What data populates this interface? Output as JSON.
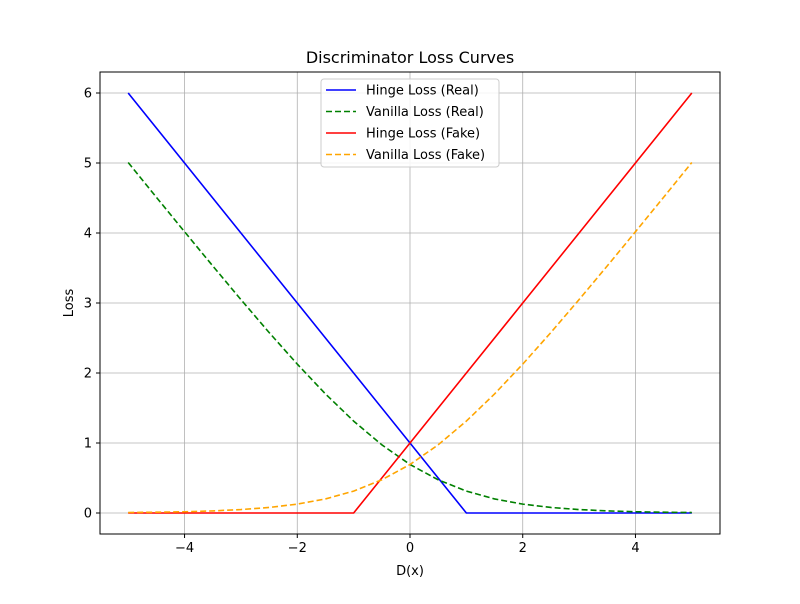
{
  "chart_data": {
    "type": "line",
    "title": "Discriminator Loss Curves",
    "xlabel": "D(x)",
    "ylabel": "Loss",
    "xlim": [
      -5.5,
      5.5
    ],
    "ylim": [
      -0.3,
      6.3
    ],
    "xticks": [
      -4,
      -2,
      0,
      2,
      4
    ],
    "xtick_labels": [
      "−4",
      "−2",
      "0",
      "2",
      "4"
    ],
    "yticks": [
      0,
      1,
      2,
      3,
      4,
      5,
      6
    ],
    "ytick_labels": [
      "0",
      "1",
      "2",
      "3",
      "4",
      "5",
      "6"
    ],
    "grid": true,
    "legend_position": "top-center",
    "series": [
      {
        "name": "Hinge Loss (Real)",
        "color": "#0000ff",
        "style": "solid",
        "x": [
          -5,
          -4,
          -3,
          -2,
          -1,
          0,
          1,
          2,
          3,
          4,
          5
        ],
        "y": [
          6,
          5,
          4,
          3,
          2,
          1,
          0,
          0,
          0,
          0,
          0
        ]
      },
      {
        "name": "Vanilla Loss (Real)",
        "color": "#008000",
        "style": "dashed",
        "x": [
          -5,
          -4.5,
          -4,
          -3.5,
          -3,
          -2.5,
          -2,
          -1.5,
          -1,
          -0.5,
          0,
          0.5,
          1,
          1.5,
          2,
          2.5,
          3,
          3.5,
          4,
          4.5,
          5
        ],
        "y": [
          5.007,
          4.511,
          4.018,
          3.53,
          3.049,
          2.579,
          2.127,
          1.701,
          1.313,
          0.974,
          0.693,
          0.474,
          0.313,
          0.201,
          0.127,
          0.079,
          0.049,
          0.03,
          0.018,
          0.011,
          0.007
        ]
      },
      {
        "name": "Hinge Loss (Fake)",
        "color": "#ff0000",
        "style": "solid",
        "x": [
          -5,
          -4,
          -3,
          -2,
          -1,
          0,
          1,
          2,
          3,
          4,
          5
        ],
        "y": [
          0,
          0,
          0,
          0,
          0,
          1,
          2,
          3,
          4,
          5,
          6
        ]
      },
      {
        "name": "Vanilla Loss (Fake)",
        "color": "#ffa500",
        "style": "dashed",
        "x": [
          -5,
          -4.5,
          -4,
          -3.5,
          -3,
          -2.5,
          -2,
          -1.5,
          -1,
          -0.5,
          0,
          0.5,
          1,
          1.5,
          2,
          2.5,
          3,
          3.5,
          4,
          4.5,
          5
        ],
        "y": [
          0.007,
          0.011,
          0.018,
          0.03,
          0.049,
          0.079,
          0.127,
          0.201,
          0.313,
          0.474,
          0.693,
          0.974,
          1.313,
          1.701,
          2.127,
          2.579,
          3.049,
          3.53,
          4.018,
          4.511,
          5.007
        ]
      }
    ]
  }
}
